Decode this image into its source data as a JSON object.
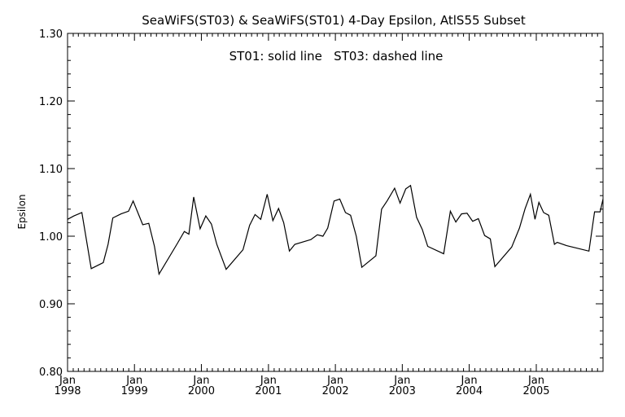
{
  "chart_data": {
    "type": "line",
    "title": "SeaWiFS(ST03) & SeaWiFS(ST01) 4-Day Epsilon, AtlS55 Subset",
    "annotation": "ST01: solid line   ST03: dashed line",
    "xlabel": "",
    "ylabel": "Epsilon",
    "xlim": [
      "1998-01-01",
      "2005-12-31"
    ],
    "ylim": [
      0.8,
      1.3
    ],
    "y_ticks": [
      "0.80",
      "0.90",
      "1.00",
      "1.10",
      "1.20",
      "1.30"
    ],
    "x_ticks": [
      {
        "month": "Jan",
        "year": "1998",
        "x": "1998-01-01"
      },
      {
        "month": "Jan",
        "year": "1999",
        "x": "1999-01-01"
      },
      {
        "month": "Jan",
        "year": "2000",
        "x": "2000-01-01"
      },
      {
        "month": "Jan",
        "year": "2001",
        "x": "2001-01-01"
      },
      {
        "month": "Jan",
        "year": "2002",
        "x": "2002-01-01"
      },
      {
        "month": "Jan",
        "year": "2003",
        "x": "2003-01-01"
      },
      {
        "month": "Jan",
        "year": "2004",
        "x": "2004-01-01"
      },
      {
        "month": "Jan",
        "year": "2005",
        "x": "2005-01-01"
      }
    ],
    "grid": false,
    "series": [
      {
        "style": "solid",
        "x": [
          "1998-01-01",
          "1998-02-05",
          "1998-03-20",
          "1998-05-10",
          "1998-07-15",
          "1998-08-10",
          "1998-09-05",
          "1998-10-20",
          "1998-11-30",
          "1998-12-25",
          "1999-02-15",
          "1999-03-20",
          "1999-04-20",
          "1999-05-15",
          "1999-08-20",
          "1999-09-30",
          "1999-10-25",
          "1999-11-20",
          "1999-12-25",
          "2000-01-25",
          "2000-02-25",
          "2000-03-25",
          "2000-05-15",
          "2000-08-15",
          "2000-09-20",
          "2000-10-20",
          "2000-11-20",
          "2000-12-25",
          "2001-01-25",
          "2001-02-25",
          "2001-03-25",
          "2001-04-25",
          "2001-05-25",
          "2001-08-20",
          "2001-09-25",
          "2001-10-25",
          "2001-11-20",
          "2001-12-25",
          "2002-01-25",
          "2002-02-25",
          "2002-03-25",
          "2002-04-25",
          "2002-05-25",
          "2002-08-10",
          "2002-09-10",
          "2002-10-10",
          "2002-11-20",
          "2002-12-20",
          "2003-01-20",
          "2003-02-15",
          "2003-03-20",
          "2003-04-20",
          "2003-05-20",
          "2003-08-15",
          "2003-09-20",
          "2003-10-20",
          "2003-11-20",
          "2003-12-20",
          "2004-01-20",
          "2004-02-20",
          "2004-03-25",
          "2004-04-25",
          "2004-05-20",
          "2004-08-20",
          "2004-10-01",
          "2004-11-01",
          "2004-11-30",
          "2004-12-25",
          "2005-01-15",
          "2005-02-10",
          "2005-03-10",
          "2005-04-10",
          "2005-04-25",
          "2005-06-15",
          "2005-10-15",
          "2005-11-15",
          "2005-12-15",
          "2005-12-31"
        ],
        "values": [
          1.025,
          1.03,
          1.035,
          0.952,
          0.961,
          0.988,
          1.027,
          1.033,
          1.037,
          1.052,
          1.017,
          1.019,
          0.985,
          0.944,
          0.988,
          1.007,
          1.003,
          1.058,
          1.011,
          1.03,
          1.018,
          0.988,
          0.951,
          0.98,
          1.016,
          1.032,
          1.025,
          1.062,
          1.023,
          1.041,
          1.02,
          0.978,
          0.988,
          0.995,
          1.002,
          1.0,
          1.012,
          1.052,
          1.055,
          1.035,
          1.031,
          1.0,
          0.954,
          0.971,
          1.04,
          1.052,
          1.071,
          1.049,
          1.07,
          1.075,
          1.028,
          1.01,
          0.985,
          0.974,
          1.037,
          1.021,
          1.033,
          1.034,
          1.022,
          1.026,
          1.001,
          0.996,
          0.955,
          0.984,
          1.012,
          1.041,
          1.062,
          1.025,
          1.05,
          1.035,
          1.031,
          0.988,
          0.991,
          0.986,
          0.978,
          1.036,
          1.036,
          1.055
        ]
      }
    ]
  }
}
